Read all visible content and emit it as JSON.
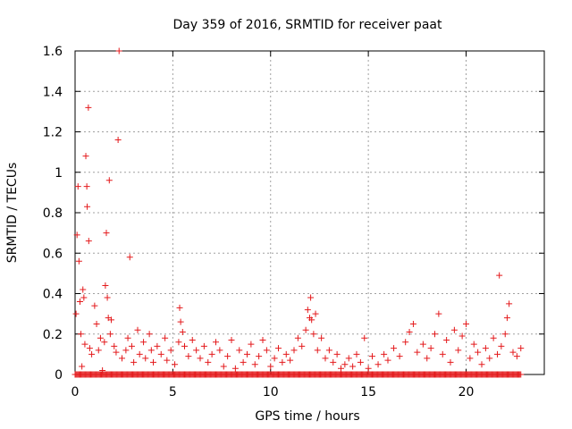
{
  "chart_data": {
    "type": "scatter",
    "title": "Day 359 of 2016, SRMTID for receiver paat",
    "xlabel": "GPS time / hours",
    "ylabel": "SRMTID / TECUs",
    "xlim": [
      0,
      24
    ],
    "ylim": [
      0,
      1.6
    ],
    "xticks": [
      0,
      5,
      10,
      15,
      20
    ],
    "xtick_labels": [
      "0",
      "5",
      "10",
      "15",
      "20"
    ],
    "yticks": [
      0,
      0.2,
      0.4,
      0.6,
      0.8,
      1.0,
      1.2,
      1.4,
      1.6
    ],
    "ytick_labels": [
      "0",
      "0.2",
      "0.4",
      "0.6",
      "0.8",
      "1",
      "1.2",
      "1.4",
      "1.6"
    ],
    "grid": true,
    "marker": "+",
    "marker_color": "#e41a1c",
    "series": [
      {
        "name": "SRMTID",
        "points": [
          [
            0.05,
            0.3
          ],
          [
            0.1,
            0.69
          ],
          [
            0.15,
            0.93
          ],
          [
            0.2,
            0.56
          ],
          [
            0.25,
            0.36
          ],
          [
            0.3,
            0.2
          ],
          [
            0.35,
            0.04
          ],
          [
            0.4,
            0.42
          ],
          [
            0.45,
            0.38
          ],
          [
            0.5,
            0.15
          ],
          [
            0.55,
            1.08
          ],
          [
            0.6,
            0.93
          ],
          [
            0.62,
            0.83
          ],
          [
            0.68,
            1.32
          ],
          [
            0.7,
            0.66
          ],
          [
            0.75,
            0.13
          ],
          [
            0.85,
            0.1
          ],
          [
            1.0,
            0.34
          ],
          [
            1.1,
            0.25
          ],
          [
            1.2,
            0.12
          ],
          [
            1.3,
            0.18
          ],
          [
            1.4,
            0.02
          ],
          [
            1.5,
            0.16
          ],
          [
            1.55,
            0.44
          ],
          [
            1.6,
            0.7
          ],
          [
            1.65,
            0.38
          ],
          [
            1.7,
            0.28
          ],
          [
            1.75,
            0.96
          ],
          [
            1.8,
            0.2
          ],
          [
            1.85,
            0.27
          ],
          [
            2.0,
            0.14
          ],
          [
            2.1,
            0.11
          ],
          [
            2.2,
            1.16
          ],
          [
            2.25,
            1.6
          ],
          [
            2.4,
            0.08
          ],
          [
            2.6,
            0.12
          ],
          [
            2.7,
            0.18
          ],
          [
            2.8,
            0.58
          ],
          [
            2.9,
            0.14
          ],
          [
            3.0,
            0.06
          ],
          [
            3.2,
            0.22
          ],
          [
            3.3,
            0.1
          ],
          [
            3.5,
            0.16
          ],
          [
            3.6,
            0.08
          ],
          [
            3.8,
            0.2
          ],
          [
            3.9,
            0.12
          ],
          [
            4.0,
            0.06
          ],
          [
            4.2,
            0.14
          ],
          [
            4.4,
            0.1
          ],
          [
            4.6,
            0.18
          ],
          [
            4.7,
            0.07
          ],
          [
            4.9,
            0.12
          ],
          [
            5.1,
            0.05
          ],
          [
            5.3,
            0.16
          ],
          [
            5.35,
            0.33
          ],
          [
            5.4,
            0.26
          ],
          [
            5.5,
            0.21
          ],
          [
            5.6,
            0.14
          ],
          [
            5.8,
            0.09
          ],
          [
            6.0,
            0.17
          ],
          [
            6.2,
            0.12
          ],
          [
            6.4,
            0.08
          ],
          [
            6.6,
            0.14
          ],
          [
            6.8,
            0.06
          ],
          [
            7.0,
            0.1
          ],
          [
            7.2,
            0.16
          ],
          [
            7.4,
            0.12
          ],
          [
            7.6,
            0.04
          ],
          [
            7.8,
            0.09
          ],
          [
            8.0,
            0.17
          ],
          [
            8.2,
            0.03
          ],
          [
            8.4,
            0.12
          ],
          [
            8.6,
            0.06
          ],
          [
            8.8,
            0.1
          ],
          [
            9.0,
            0.15
          ],
          [
            9.2,
            0.05
          ],
          [
            9.4,
            0.09
          ],
          [
            9.6,
            0.17
          ],
          [
            9.8,
            0.12
          ],
          [
            10.0,
            0.04
          ],
          [
            10.2,
            0.08
          ],
          [
            10.4,
            0.13
          ],
          [
            10.6,
            0.06
          ],
          [
            10.8,
            0.1
          ],
          [
            11.0,
            0.07
          ],
          [
            11.2,
            0.12
          ],
          [
            11.4,
            0.18
          ],
          [
            11.6,
            0.14
          ],
          [
            11.8,
            0.22
          ],
          [
            11.9,
            0.32
          ],
          [
            12.0,
            0.28
          ],
          [
            12.05,
            0.38
          ],
          [
            12.1,
            0.27
          ],
          [
            12.2,
            0.2
          ],
          [
            12.3,
            0.3
          ],
          [
            12.4,
            0.12
          ],
          [
            12.6,
            0.18
          ],
          [
            12.8,
            0.08
          ],
          [
            13.0,
            0.12
          ],
          [
            13.2,
            0.06
          ],
          [
            13.4,
            0.1
          ],
          [
            13.6,
            0.03
          ],
          [
            13.8,
            0.05
          ],
          [
            14.0,
            0.08
          ],
          [
            14.2,
            0.04
          ],
          [
            14.4,
            0.1
          ],
          [
            14.6,
            0.06
          ],
          [
            14.8,
            0.18
          ],
          [
            15.0,
            0.03
          ],
          [
            15.2,
            0.09
          ],
          [
            15.5,
            0.05
          ],
          [
            15.8,
            0.1
          ],
          [
            16.0,
            0.07
          ],
          [
            16.3,
            0.13
          ],
          [
            16.6,
            0.09
          ],
          [
            16.9,
            0.16
          ],
          [
            17.1,
            0.21
          ],
          [
            17.3,
            0.25
          ],
          [
            17.5,
            0.11
          ],
          [
            17.8,
            0.15
          ],
          [
            18.0,
            0.08
          ],
          [
            18.2,
            0.13
          ],
          [
            18.4,
            0.2
          ],
          [
            18.6,
            0.3
          ],
          [
            18.8,
            0.1
          ],
          [
            19.0,
            0.17
          ],
          [
            19.2,
            0.06
          ],
          [
            19.4,
            0.22
          ],
          [
            19.6,
            0.12
          ],
          [
            19.8,
            0.19
          ],
          [
            20.0,
            0.25
          ],
          [
            20.2,
            0.08
          ],
          [
            20.4,
            0.15
          ],
          [
            20.6,
            0.11
          ],
          [
            20.8,
            0.05
          ],
          [
            21.0,
            0.13
          ],
          [
            21.2,
            0.08
          ],
          [
            21.4,
            0.18
          ],
          [
            21.6,
            0.1
          ],
          [
            21.7,
            0.49
          ],
          [
            21.8,
            0.14
          ],
          [
            22.0,
            0.2
          ],
          [
            22.1,
            0.28
          ],
          [
            22.2,
            0.35
          ],
          [
            22.4,
            0.11
          ],
          [
            22.6,
            0.09
          ],
          [
            22.8,
            0.13
          ]
        ],
        "zero_baseline": {
          "from": 0,
          "to": 22.8,
          "value": 0
        }
      }
    ]
  }
}
